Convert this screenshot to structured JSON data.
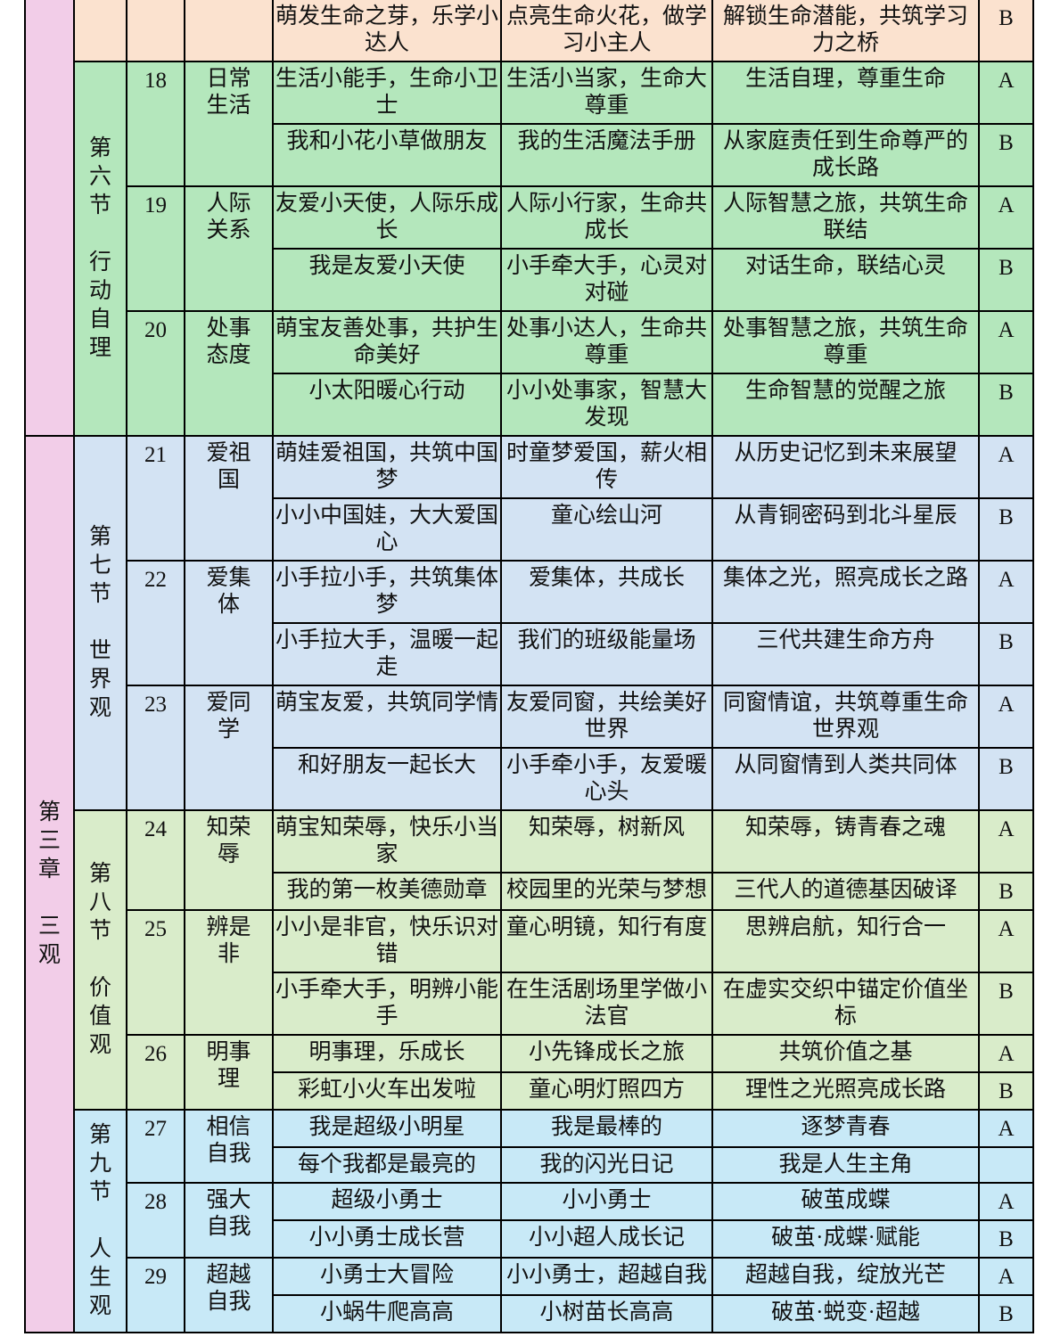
{
  "colors": {
    "chapter_pink": "#f2cde8",
    "carryover_peach": "#fbe2cf",
    "section6_green": "#b4e7bc",
    "section7_blue": "#d3e3f3",
    "section8_green": "#d9ecca",
    "section9_cyan": "#c8e9f7",
    "border_black": "#000000"
  },
  "table": {
    "carryover_row": {
      "course1": "萌发生命之芽，乐学小达人",
      "course2": "点亮生命火花，做学习小主人",
      "course3": "解锁生命潜能，共筑学习力之桥",
      "grade": "B"
    },
    "chapter_top": {
      "label": ""
    },
    "chapter": {
      "label": "第三章",
      "name": "三观"
    },
    "sections": [
      {
        "label": "第六节",
        "name": "行动自理",
        "color_key": "section6_green",
        "groups": [
          {
            "num": "18",
            "category": "日常生活",
            "rows": [
              {
                "course1": "生活小能手，生命小卫士",
                "course2": "生活小当家，生命大尊重",
                "course3": "生活自理，尊重生命",
                "grade": "A"
              },
              {
                "course1": "我和小花小草做朋友",
                "course2": "我的生活魔法手册",
                "course3": "从家庭责任到生命尊严的成长路",
                "grade": "B"
              }
            ]
          },
          {
            "num": "19",
            "category": "人际关系",
            "rows": [
              {
                "course1": "友爱小天使，人际乐成长",
                "course2": "人际小行家，生命共成长",
                "course3": "人际智慧之旅，共筑生命联结",
                "grade": "A"
              },
              {
                "course1": "我是友爱小天使",
                "course2": "小手牵大手，心灵对对碰",
                "course3": "对话生命，联结心灵",
                "grade": "B"
              }
            ]
          },
          {
            "num": "20",
            "category": "处事态度",
            "rows": [
              {
                "course1": "萌宝友善处事，共护生命美好",
                "course2": "处事小达人，生命共尊重",
                "course3": "处事智慧之旅，共筑生命尊重",
                "grade": "A"
              },
              {
                "course1": "小太阳暖心行动",
                "course2": "小小处事家，智慧大发现",
                "course3": "生命智慧的觉醒之旅",
                "grade": "B"
              }
            ]
          }
        ]
      },
      {
        "label": "第七节",
        "name": "世界观",
        "color_key": "section7_blue",
        "groups": [
          {
            "num": "21",
            "category": "爱祖国",
            "rows": [
              {
                "course1": "萌娃爱祖国，共筑中国梦",
                "course2": "时童梦爱国，薪火相传",
                "course3": "从历史记忆到未来展望",
                "grade": "A"
              },
              {
                "course1": "小小中国娃，大大爱国心",
                "course2": "童心绘山河",
                "course3": "从青铜密码到北斗星辰",
                "grade": "B"
              }
            ]
          },
          {
            "num": "22",
            "category": "爱集体",
            "rows": [
              {
                "course1": "小手拉小手，共筑集体梦",
                "course2": "爱集体，共成长",
                "course3": "集体之光，照亮成长之路",
                "grade": "A"
              },
              {
                "course1": "小手拉大手，温暖一起走",
                "course2": "我们的班级能量场",
                "course3": "三代共建生命方舟",
                "grade": "B"
              }
            ]
          },
          {
            "num": "23",
            "category": "爱同学",
            "rows": [
              {
                "course1": "萌宝友爱，共筑同学情",
                "course2": "友爱同窗，共绘美好世界",
                "course3": "同窗情谊，共筑尊重生命世界观",
                "grade": "A"
              },
              {
                "course1": "和好朋友一起长大",
                "course2": "小手牵小手，友爱暖心头",
                "course3": "从同窗情到人类共同体",
                "grade": "B"
              }
            ]
          }
        ]
      },
      {
        "label": "第八节",
        "name": "价值观",
        "color_key": "section8_green",
        "groups": [
          {
            "num": "24",
            "category": "知荣辱",
            "rows": [
              {
                "course1": "萌宝知荣辱，快乐小当家",
                "course2": "知荣辱，树新风",
                "course3": "知荣辱，铸青春之魂",
                "grade": "A"
              },
              {
                "course1": "我的第一枚美德勋章",
                "course2": "校园里的光荣与梦想",
                "course3": "三代人的道德基因破译",
                "grade": "B"
              }
            ]
          },
          {
            "num": "25",
            "category": "辨是非",
            "rows": [
              {
                "course1": "小小是非官，快乐识对错",
                "course2": "童心明镜，知行有度",
                "course3": "思辨启航，知行合一",
                "grade": "A"
              },
              {
                "course1": "小手牵大手，明辨小能手",
                "course2": "在生活剧场里学做小法官",
                "course3": "在虚实交织中锚定价值坐标",
                "grade": "B"
              }
            ]
          },
          {
            "num": "26",
            "category": "明事理",
            "rows": [
              {
                "course1": "明事理，乐成长",
                "course2": "小先锋成长之旅",
                "course3": "共筑价值之基",
                "grade": "A"
              },
              {
                "course1": "彩虹小火车出发啦",
                "course2": "童心明灯照四方",
                "course3": "理性之光照亮成长路",
                "grade": "B"
              }
            ]
          }
        ]
      },
      {
        "label": "第九节",
        "name": "人生观",
        "color_key": "section9_cyan",
        "groups": [
          {
            "num": "27",
            "category": "相信自我",
            "rows": [
              {
                "course1": "我是超级小明星",
                "course2": "我是最棒的",
                "course3": "逐梦青春",
                "grade": "A"
              },
              {
                "course1": "每个我都是最亮的",
                "course2": "我的闪光日记",
                "course3": "我是人生主角",
                "grade": ""
              }
            ]
          },
          {
            "num": "28",
            "category": "强大自我",
            "rows": [
              {
                "course1": "超级小勇士",
                "course2": "小小勇士",
                "course3": "破茧成蝶",
                "grade": "A"
              },
              {
                "course1": "小小勇士成长营",
                "course2": "小小超人成长记",
                "course3": "破茧·成蝶·赋能",
                "grade": "B"
              }
            ]
          },
          {
            "num": "29",
            "category": "超越自我",
            "rows": [
              {
                "course1": "小勇士大冒险",
                "course2": "小小勇士，超越自我",
                "course3": "超越自我，绽放光芒",
                "grade": "A"
              },
              {
                "course1": "小蜗牛爬高高",
                "course2": "小树苗长高高",
                "course3": "破茧·蜕变·超越",
                "grade": "B"
              }
            ]
          }
        ]
      }
    ]
  }
}
